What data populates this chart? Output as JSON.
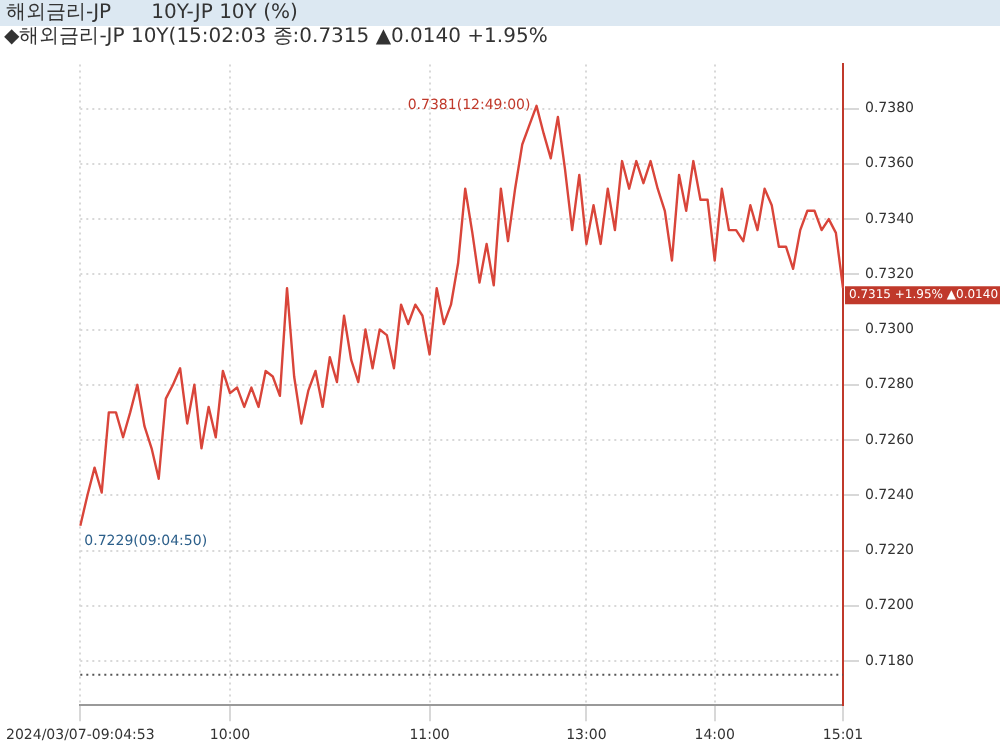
{
  "chart_data": {
    "type": "line",
    "title": "해외금리-JP",
    "subtitle": "10Y-JP 10Y (%)",
    "categories": [
      "2024/03/07-09:04:53",
      null,
      null,
      null,
      null,
      null,
      null,
      null,
      null,
      null,
      null,
      null,
      null,
      null,
      null,
      null,
      null,
      null,
      null,
      null,
      null,
      "10:00",
      null,
      null,
      null,
      null,
      null,
      null,
      null,
      null,
      null,
      null,
      null,
      null,
      null,
      null,
      null,
      null,
      null,
      null,
      null,
      null,
      null,
      null,
      null,
      null,
      null,
      null,
      null,
      "11:00",
      null,
      null,
      null,
      null,
      null,
      null,
      null,
      null,
      null,
      null,
      null,
      null,
      null,
      null,
      null,
      null,
      null,
      null,
      null,
      null,
      null,
      "13:00",
      null,
      null,
      null,
      null,
      null,
      null,
      null,
      null,
      null,
      null,
      null,
      null,
      null,
      null,
      null,
      null,
      null,
      "14:00",
      null,
      null,
      null,
      null,
      null,
      null,
      null,
      null,
      null,
      null,
      null,
      null,
      null,
      null,
      null,
      null,
      null,
      "15:01"
    ],
    "series": [
      {
        "color": "#d9453a",
        "values": [
          0.7229,
          0.724,
          0.725,
          0.7241,
          0.727,
          0.727,
          0.7261,
          0.727,
          0.728,
          0.7265,
          0.7257,
          0.7246,
          0.7275,
          0.728,
          0.7286,
          0.7266,
          0.728,
          0.7257,
          0.7272,
          0.7261,
          0.7285,
          0.7277,
          0.7279,
          0.7272,
          0.7279,
          0.7272,
          0.7285,
          0.7283,
          0.7276,
          0.7315,
          0.7283,
          0.7266,
          0.7278,
          0.7285,
          0.7272,
          0.729,
          0.7281,
          0.7305,
          0.7289,
          0.7281,
          0.73,
          0.7286,
          0.73,
          0.7298,
          0.7286,
          0.7309,
          0.7302,
          0.7309,
          0.7305,
          0.7291,
          0.7315,
          0.7302,
          0.7309,
          0.7324,
          0.7351,
          0.7335,
          0.7317,
          0.7331,
          0.7316,
          0.7351,
          0.7332,
          0.7351,
          0.7367,
          0.7374,
          0.7381,
          0.7371,
          0.7362,
          0.7377,
          0.7358,
          0.7336,
          0.7356,
          0.7331,
          0.7345,
          0.7331,
          0.7351,
          0.7336,
          0.7361,
          0.7351,
          0.7361,
          0.7353,
          0.7361,
          0.7351,
          0.7343,
          0.7325,
          0.7356,
          0.7343,
          0.7361,
          0.7347,
          0.7347,
          0.7325,
          0.7351,
          0.7336,
          0.7336,
          0.7332,
          0.7345,
          0.7336,
          0.7351,
          0.7345,
          0.733,
          0.733,
          0.7322,
          0.7336,
          0.7343,
          0.7343,
          0.7336,
          0.734,
          0.7335,
          0.7315
        ]
      }
    ],
    "ylim": [
      0.7164,
      0.7396
    ],
    "yticks": [
      {
        "value": 0.718,
        "label": "0.7180"
      },
      {
        "value": 0.72,
        "label": "0.7200"
      },
      {
        "value": 0.722,
        "label": "0.7220"
      },
      {
        "value": 0.724,
        "label": "0.7240"
      },
      {
        "value": 0.726,
        "label": "0.7260"
      },
      {
        "value": 0.728,
        "label": "0.7280"
      },
      {
        "value": 0.73,
        "label": "0.7300"
      },
      {
        "value": 0.732,
        "label": "0.7320"
      },
      {
        "value": 0.734,
        "label": "0.7340"
      },
      {
        "value": 0.736,
        "label": "0.7360"
      },
      {
        "value": 0.738,
        "label": "0.7380"
      }
    ],
    "ref_lines": [
      {
        "axis": "y",
        "value": 0.7175,
        "color": "#555555",
        "line_style": "dotted"
      }
    ],
    "annotations": [
      "◆해외금리-JP 10Y(15:02:03 종:0.7315 ▲0.0140 +1.95%",
      "0.7381(12:49:00)",
      "0.7229(09:04:50)",
      "0.7315 +1.95% ▲0.0140"
    ],
    "grid": true,
    "line_style": "solid",
    "marker": "none",
    "legend": false
  }
}
